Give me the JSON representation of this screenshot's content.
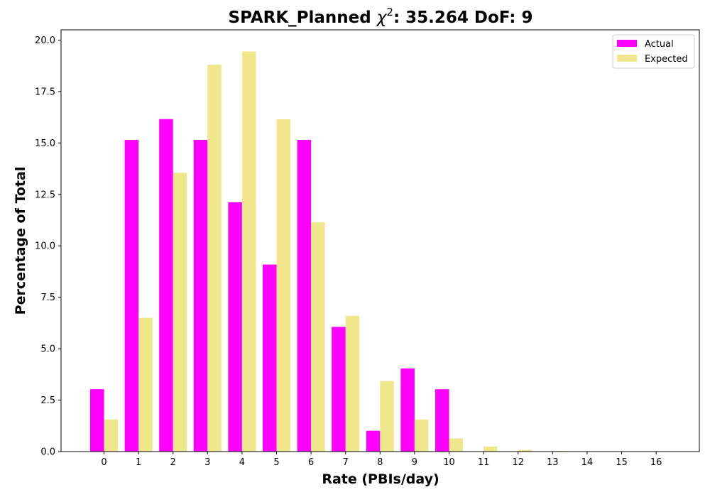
{
  "chart_data": {
    "type": "bar",
    "title": "SPARK_Planned χ²: 35.264 DoF: 9",
    "title_parts": {
      "prefix": "SPARK_Planned ",
      "chi": "χ",
      "sup": "2",
      "suffix": ": 35.264 DoF: 9"
    },
    "xlabel": "Rate (PBIs/day)",
    "ylabel": "Percentage of Total",
    "categories": [
      "0",
      "1",
      "2",
      "3",
      "4",
      "5",
      "6",
      "7",
      "8",
      "9",
      "10",
      "11",
      "12",
      "13",
      "14",
      "15",
      "16"
    ],
    "series": [
      {
        "name": "Actual",
        "color": "#ff00ff",
        "values": [
          3.03,
          15.15,
          16.16,
          15.15,
          12.12,
          9.09,
          15.15,
          6.06,
          1.01,
          4.04,
          3.03,
          0,
          0,
          0,
          0,
          0,
          0
        ]
      },
      {
        "name": "Expected",
        "color": "#f0e68c",
        "values": [
          1.56,
          6.5,
          13.55,
          18.8,
          19.45,
          16.15,
          11.15,
          6.6,
          3.43,
          1.56,
          0.64,
          0.24,
          0.08,
          0.03,
          0.01,
          0.0,
          0.0
        ]
      }
    ],
    "ylim": [
      0,
      20.5
    ],
    "yticks": [
      "0.0",
      "2.5",
      "5.0",
      "7.5",
      "10.0",
      "12.5",
      "15.0",
      "17.5",
      "20.0"
    ],
    "ytick_values": [
      0,
      2.5,
      5,
      7.5,
      10,
      12.5,
      15,
      17.5,
      20
    ],
    "grid": false,
    "legend": "top-right"
  }
}
